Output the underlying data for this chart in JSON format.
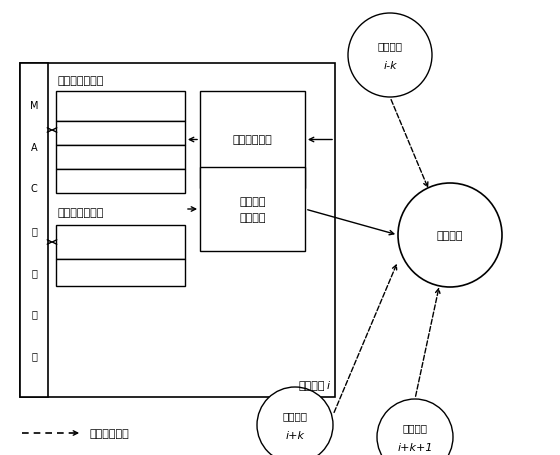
{
  "background_color": "#ffffff",
  "mac_label": "MAC接入控制",
  "freq_table_label": "时频资源记录表",
  "sched_card_label": "调度节点登记卡",
  "main_node_label": "主吶节点",
  "main_node_i": "i",
  "realtime_box_label": "实时感知业务",
  "access_box_label1": "接入申请",
  "access_box_label2": "发送业务",
  "scheduler_node_label": "调度节点",
  "node_ik_label1": "主吶节点",
  "node_ik_label2": "i-k",
  "node_ipk_label1": "主吶节点",
  "node_ipk_label2": "i+k",
  "node_ipk1_label1": "主吶节点",
  "node_ipk1_label2": "i+k+1",
  "legend_dashes": "────▶",
  "legend_text": "假设接入请求",
  "line_color": "#000000"
}
